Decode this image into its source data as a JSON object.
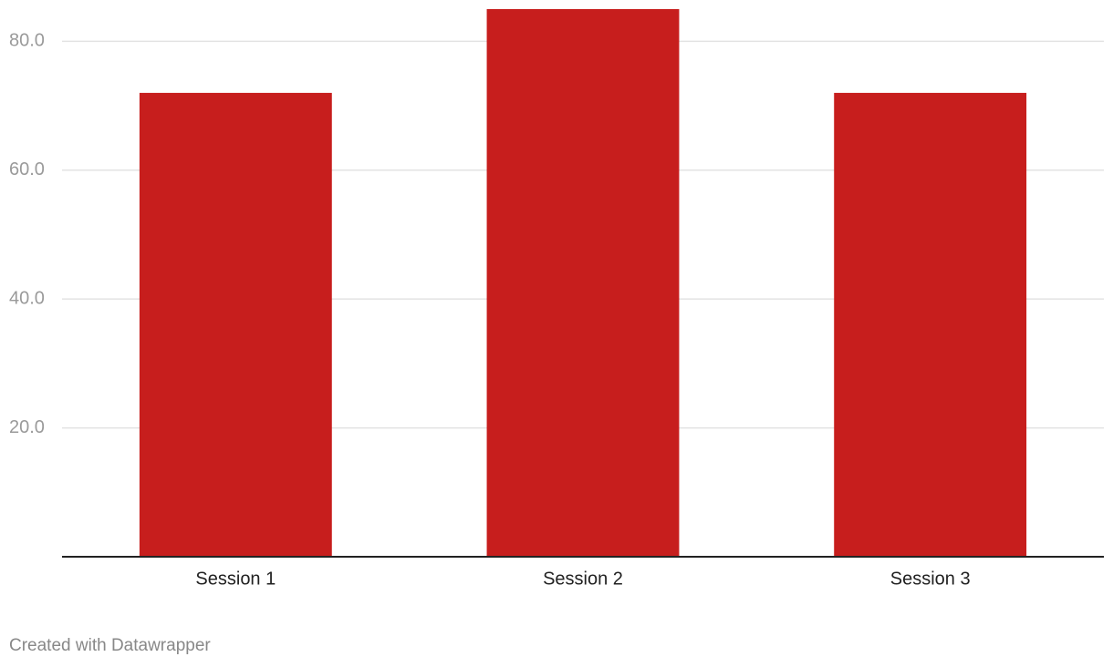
{
  "chart_data": {
    "type": "bar",
    "categories": [
      "Session 1",
      "Session 2",
      "Session 3"
    ],
    "values": [
      72,
      85,
      72
    ],
    "color": "#c71e1d",
    "ylim": [
      0,
      85
    ],
    "yticks": [
      {
        "value": 20,
        "label": "20.0"
      },
      {
        "value": 40,
        "label": "40.0"
      },
      {
        "value": 60,
        "label": "60.0"
      },
      {
        "value": 80,
        "label": "80.0"
      }
    ],
    "grid": true,
    "footer": "Created with Datawrapper"
  }
}
